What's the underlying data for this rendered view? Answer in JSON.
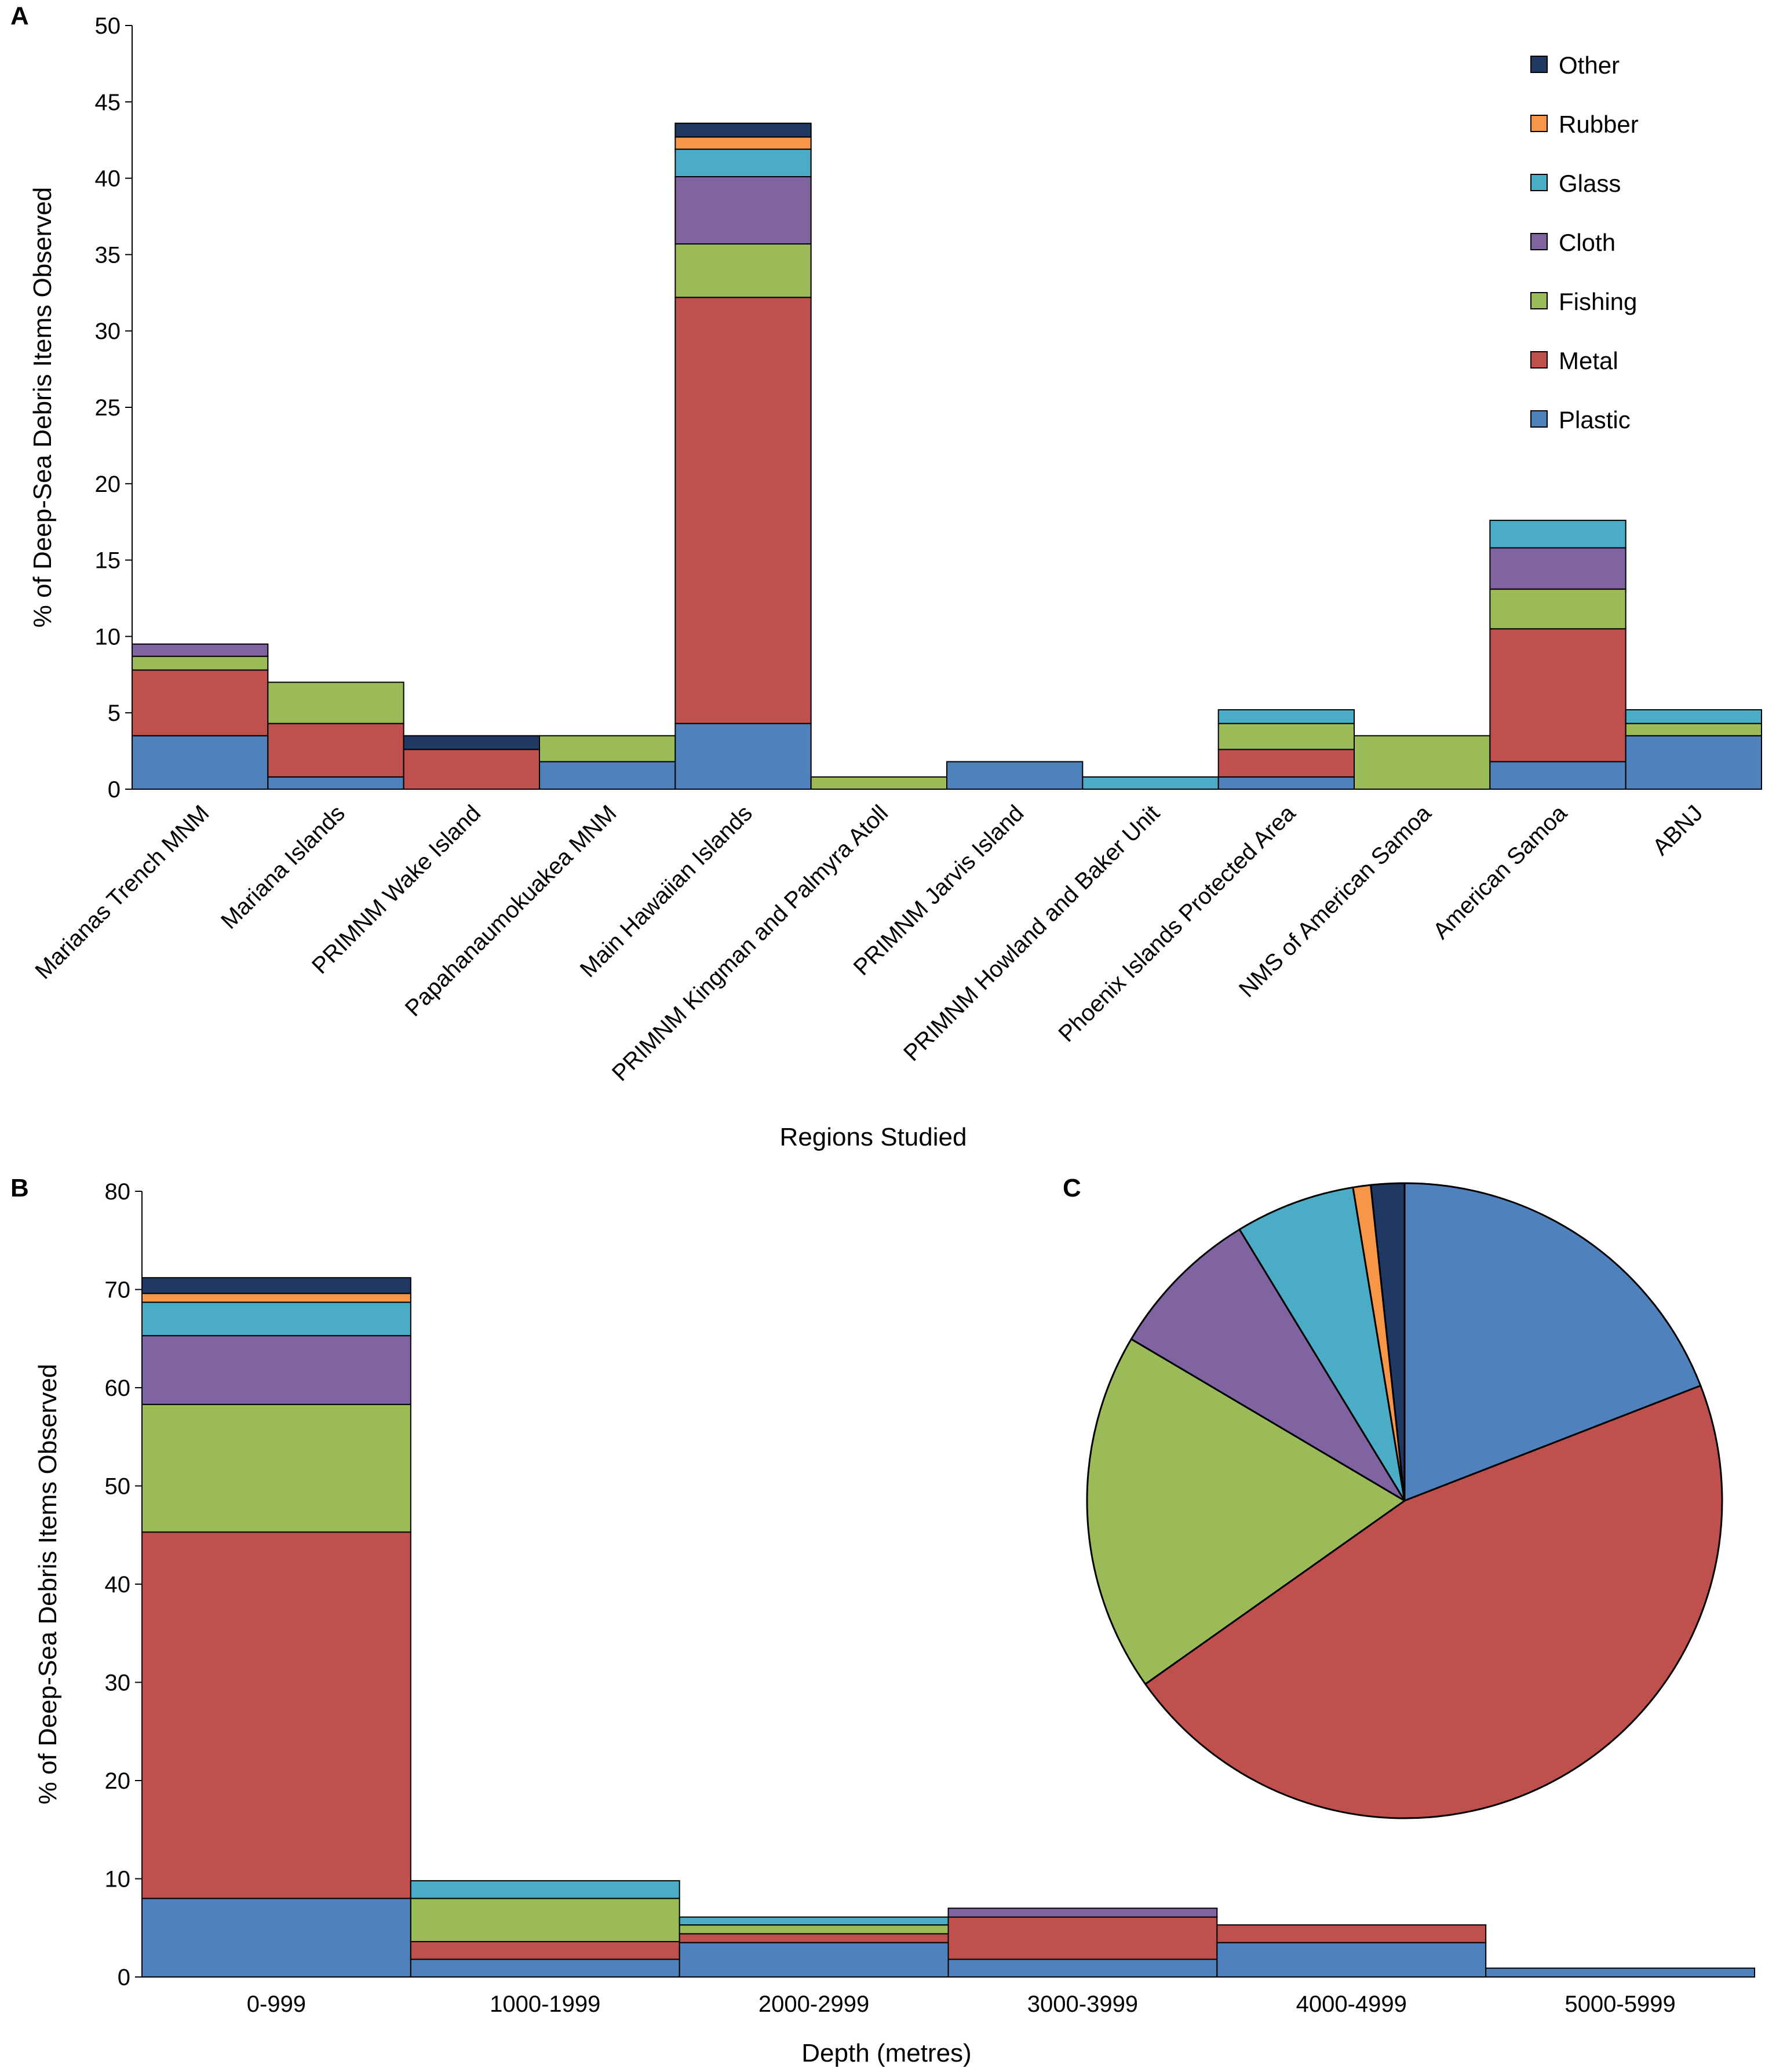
{
  "chart_data": [
    {
      "panel": "A",
      "type": "bar",
      "stacked": true,
      "xlabel": "Regions Studied",
      "ylabel": "% of Deep-Sea Debris Items Observed",
      "ylim": [
        0,
        50
      ],
      "yticks": [
        "0",
        "5",
        "10",
        "15",
        "20",
        "25",
        "30",
        "35",
        "40",
        "45",
        "50"
      ],
      "categories": [
        "Marianas Trench MNM",
        "Mariana Islands",
        "PRIMNM Wake Island",
        "Papahanaumokuakea MNM",
        "Main Hawaiian Islands",
        "PRIMNM Kingman and Palmyra Atoll",
        "PRIMNM Jarvis Island",
        "PRIMNM Howland and Baker Unit",
        "Phoenix Islands Protected Area",
        "NMS of American Samoa",
        "American Samoa",
        "ABNJ"
      ],
      "series": [
        {
          "name": "Plastic",
          "color": "#4f81bd",
          "values": [
            3.5,
            0.8,
            0,
            1.8,
            4.3,
            0,
            1.8,
            0,
            0.8,
            0,
            1.8,
            3.5
          ]
        },
        {
          "name": "Metal",
          "color": "#c0504d",
          "values": [
            4.3,
            3.5,
            2.6,
            0,
            27.9,
            0,
            0,
            0,
            1.8,
            0,
            8.7,
            0
          ]
        },
        {
          "name": "Fishing",
          "color": "#9bbb59",
          "values": [
            0.9,
            2.7,
            0,
            1.7,
            3.5,
            0.8,
            0,
            0,
            1.7,
            3.5,
            2.6,
            0.8
          ]
        },
        {
          "name": "Cloth",
          "color": "#8064a2",
          "values": [
            0.8,
            0,
            0,
            0,
            4.4,
            0,
            0,
            0,
            0,
            0,
            2.7,
            0
          ]
        },
        {
          "name": "Glass",
          "color": "#4bacc6",
          "values": [
            0,
            0,
            0,
            0,
            1.8,
            0,
            0,
            0.8,
            0.9,
            0,
            1.8,
            0.9
          ]
        },
        {
          "name": "Rubber",
          "color": "#f79646",
          "values": [
            0,
            0,
            0,
            0,
            0.8,
            0,
            0,
            0,
            0,
            0,
            0,
            0
          ]
        },
        {
          "name": "Other",
          "color": "#1f3864",
          "values": [
            0,
            0,
            0.9,
            0,
            0.9,
            0,
            0,
            0,
            0,
            0,
            0,
            0
          ]
        }
      ],
      "legend": [
        "Other",
        "Rubber",
        "Glass",
        "Cloth",
        "Fishing",
        "Metal",
        "Plastic"
      ],
      "legend_position": "top-right"
    },
    {
      "panel": "B",
      "type": "bar",
      "stacked": true,
      "xlabel": "Depth (metres)",
      "ylabel": "% of Deep-Sea Debris Items Observed",
      "ylim": [
        0,
        80
      ],
      "yticks": [
        "0",
        "10",
        "20",
        "30",
        "40",
        "50",
        "60",
        "70",
        "80"
      ],
      "categories": [
        "0-999",
        "1000-1999",
        "2000-2999",
        "3000-3999",
        "4000-4999",
        "5000-5999"
      ],
      "series": [
        {
          "name": "Plastic",
          "color": "#4f81bd",
          "values": [
            8.0,
            1.8,
            3.5,
            1.8,
            3.5,
            0.9
          ]
        },
        {
          "name": "Metal",
          "color": "#c0504d",
          "values": [
            37.3,
            1.8,
            0.9,
            4.3,
            1.8,
            0
          ]
        },
        {
          "name": "Fishing",
          "color": "#9bbb59",
          "values": [
            13.0,
            4.4,
            0.9,
            0,
            0,
            0
          ]
        },
        {
          "name": "Cloth",
          "color": "#8064a2",
          "values": [
            7.0,
            0,
            0,
            0.9,
            0,
            0
          ]
        },
        {
          "name": "Glass",
          "color": "#4bacc6",
          "values": [
            3.4,
            1.8,
            0.8,
            0,
            0,
            0
          ]
        },
        {
          "name": "Rubber",
          "color": "#f79646",
          "values": [
            0.9,
            0,
            0,
            0,
            0,
            0
          ]
        },
        {
          "name": "Other",
          "color": "#1f3864",
          "values": [
            1.6,
            0,
            0,
            0,
            0,
            0
          ]
        }
      ]
    },
    {
      "panel": "C",
      "type": "pie",
      "start": "12 o'clock",
      "direction": "clockwise",
      "slices": [
        {
          "name": "Plastic",
          "color": "#4f81bd",
          "value": 19.1
        },
        {
          "name": "Metal",
          "color": "#c0504d",
          "value": 46.1
        },
        {
          "name": "Fishing",
          "color": "#9bbb59",
          "value": 18.3
        },
        {
          "name": "Cloth",
          "color": "#8064a2",
          "value": 7.8
        },
        {
          "name": "Glass",
          "color": "#4bacc6",
          "value": 6.1
        },
        {
          "name": "Rubber",
          "color": "#f79646",
          "value": 0.9
        },
        {
          "name": "Other",
          "color": "#1f3864",
          "value": 1.7
        }
      ]
    }
  ]
}
